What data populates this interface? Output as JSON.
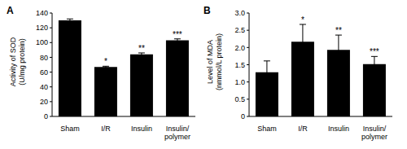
{
  "chart_data": [
    {
      "type": "bar",
      "title": "A",
      "y_label": "Activity of SOD (U/mg protein)",
      "categories": [
        "Sham",
        "I/R",
        "Insulin",
        "Insulin/polymer"
      ],
      "values": [
        130,
        67,
        84,
        103
      ],
      "errors": [
        2,
        1,
        2,
        2
      ],
      "annotations": [
        null,
        "*",
        "**",
        "***"
      ],
      "color": "#000000",
      "ylim": [
        0,
        140
      ],
      "yticks": [
        0,
        20,
        40,
        60,
        80,
        100,
        120,
        140
      ],
      "grid": false
    },
    {
      "type": "bar",
      "title": "B",
      "y_label": "Level of MDA (nmmol/L protein)",
      "categories": [
        "Sham",
        "I/R",
        "Insulin",
        "Insulin/polymer"
      ],
      "values": [
        1.28,
        2.17,
        1.93,
        1.52
      ],
      "errors": [
        0.33,
        0.5,
        0.43,
        0.22
      ],
      "annotations": [
        null,
        "*",
        "**",
        "***"
      ],
      "color": "#000000",
      "ylim": [
        0,
        3
      ],
      "yticks": [
        0,
        {
          "value": 0.5,
          "label": "0.5"
        },
        {
          "value": 1,
          "label": "1.0"
        },
        {
          "value": 1.5,
          "label": "1.5"
        },
        {
          "value": 2,
          "label": "2.0"
        },
        {
          "value": 2.5,
          "label": "2.5"
        },
        {
          "value": 3,
          "label": "3.0"
        }
      ],
      "grid": false
    }
  ]
}
